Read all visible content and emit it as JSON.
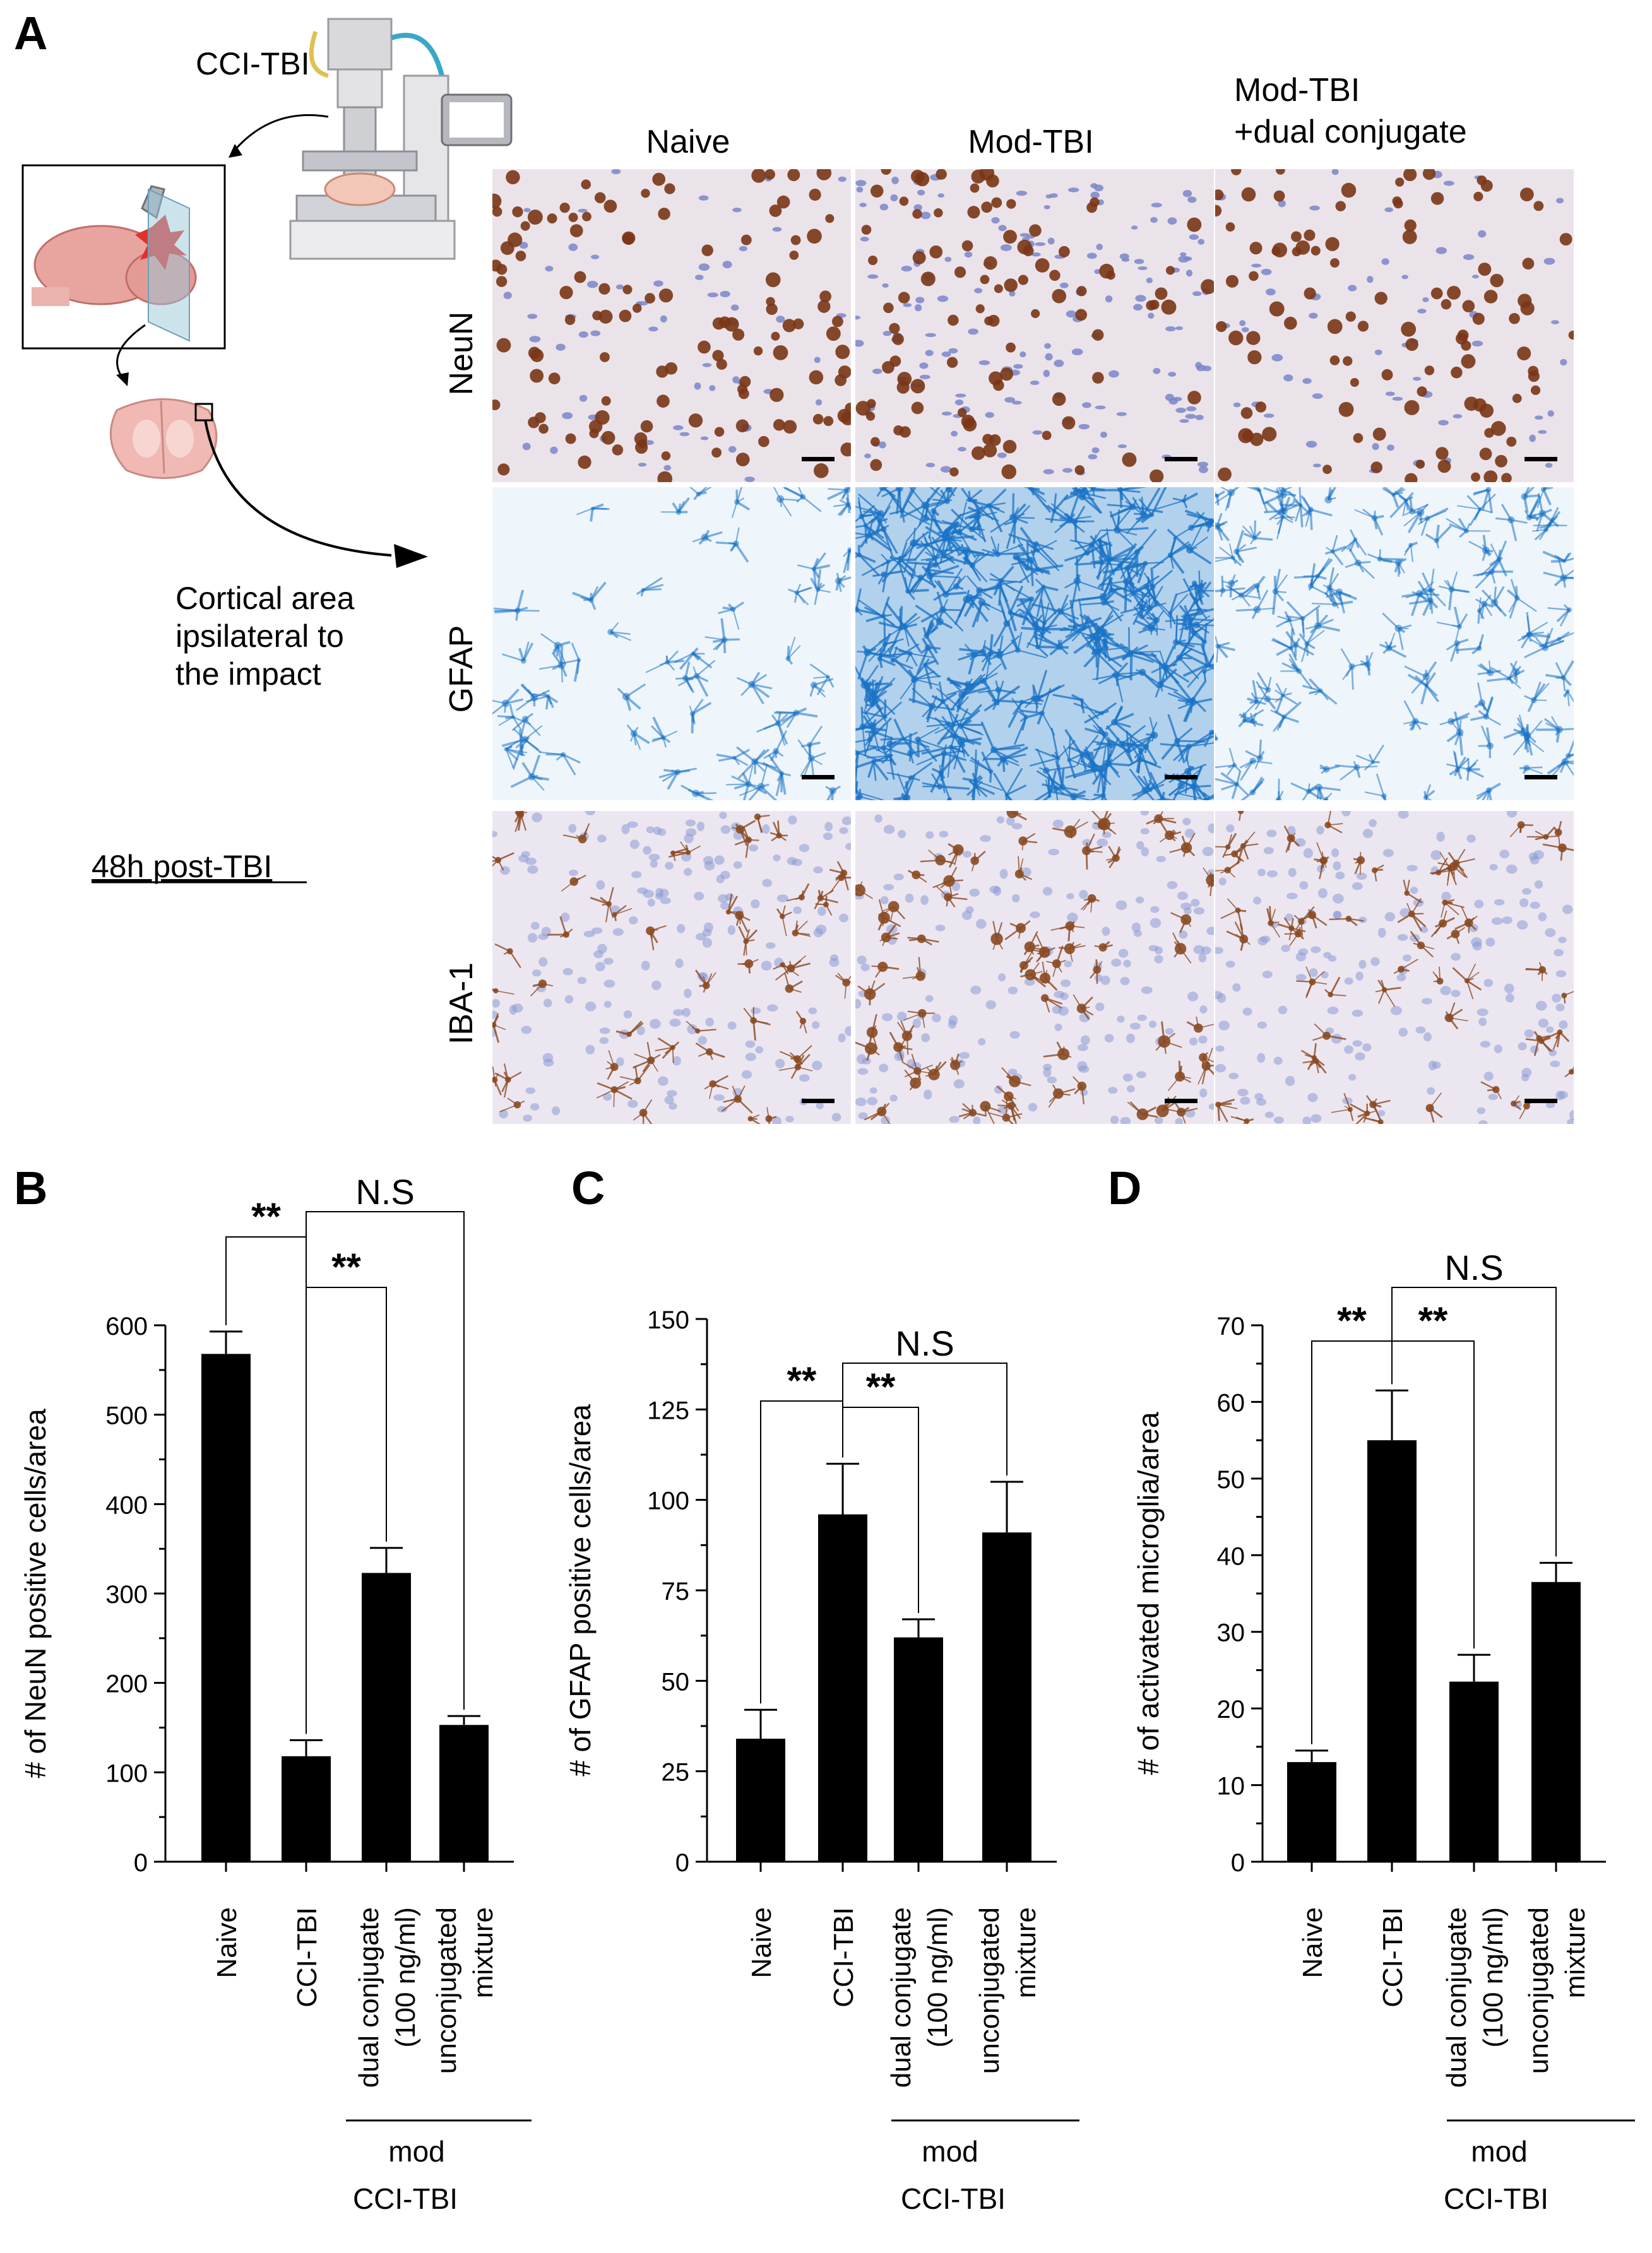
{
  "panel_a": {
    "letter": "A",
    "device_label": "CCI-TBI",
    "annotation_lines": [
      "Cortical area",
      "ipsilateral to",
      "the impact"
    ],
    "timepoint": "48h post-TBI",
    "column_headers": [
      "Naive",
      "Mod-TBI"
    ],
    "column_header_3": [
      "Mod-TBI",
      "+dual conjugate"
    ],
    "row_labels": [
      "NeuN",
      "GFAP",
      "IBA-1"
    ],
    "colors": {
      "neun_bg": "#ebe3ea",
      "neun_cell_brown": "#7a3515",
      "neun_cell_blue": "#7a86c8",
      "gfap_bg": "#eef5fb",
      "gfap_stain": "#1a73c6",
      "iba_bg": "#ece6f0",
      "iba_brown": "#8a4a22",
      "iba_blue": "#8d9ad6"
    }
  },
  "chart_data": [
    {
      "panel": "B",
      "type": "bar",
      "ylabel": "# of NeuN positive cells/area",
      "ylim": [
        0,
        600
      ],
      "yticks": [
        0,
        100,
        200,
        300,
        400,
        500,
        600
      ],
      "categories": [
        "Naive",
        "CCI-TBI",
        "dual conjugate (100 ng/ml)",
        "unconjugated mixture"
      ],
      "category_lines": [
        [
          "Naive"
        ],
        [
          "CCI-TBI"
        ],
        [
          "dual conjugate",
          "(100 ng/ml)"
        ],
        [
          "unconjugated",
          "mixture"
        ]
      ],
      "values": [
        568,
        118,
        323,
        153
      ],
      "errors": [
        25,
        18,
        28,
        10
      ],
      "bar_color": "#000000",
      "significance": [
        "**",
        "**",
        "N.S"
      ],
      "group_label": [
        "mod",
        "CCI-TBI"
      ]
    },
    {
      "panel": "C",
      "type": "bar",
      "ylabel": "# of GFAP positive cells/area",
      "ylim": [
        0,
        150
      ],
      "yticks": [
        0,
        25,
        50,
        75,
        100,
        125,
        150
      ],
      "categories": [
        "Naive",
        "CCI-TBI",
        "dual conjugate (100 ng/ml)",
        "unconjugated mixture"
      ],
      "category_lines": [
        [
          "Naive"
        ],
        [
          "CCI-TBI"
        ],
        [
          "dual conjugate",
          "(100 ng/ml)"
        ],
        [
          "unconjugated",
          "mixture"
        ]
      ],
      "values": [
        34,
        96,
        62,
        91
      ],
      "errors": [
        8,
        14,
        5,
        14
      ],
      "bar_color": "#000000",
      "significance": [
        "**",
        "**",
        "N.S"
      ],
      "group_label": [
        "mod",
        "CCI-TBI"
      ]
    },
    {
      "panel": "D",
      "type": "bar",
      "ylabel": "# of activated microglia/area",
      "ylim": [
        0,
        70
      ],
      "yticks": [
        0,
        10,
        20,
        30,
        40,
        50,
        60,
        70
      ],
      "categories": [
        "Naive",
        "CCI-TBI",
        "dual conjugate (100 ng/ml)",
        "unconjugated mixture"
      ],
      "category_lines": [
        [
          "Naive"
        ],
        [
          "CCI-TBI"
        ],
        [
          "dual conjugate",
          "(100 ng/ml)"
        ],
        [
          "unconjugated",
          "mixture"
        ]
      ],
      "values": [
        13,
        55,
        23.5,
        36.5
      ],
      "errors": [
        1.5,
        6.5,
        3.5,
        2.5
      ],
      "bar_color": "#000000",
      "significance": [
        "**",
        "**",
        "N.S"
      ],
      "group_label": [
        "mod",
        "CCI-TBI"
      ]
    }
  ]
}
